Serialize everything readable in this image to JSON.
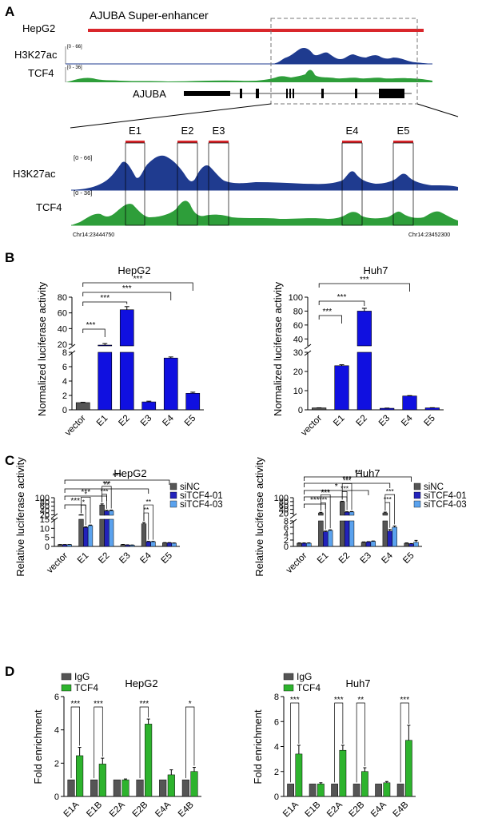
{
  "panel_a": {
    "letter": "A",
    "cell_line": "HepG2",
    "super_enhancer_label": "AJUBA Super-enhancer",
    "track1_label": "H3K27ac",
    "track1_range": "[0 - 66]",
    "track2_label": "TCF4",
    "track2_range": "[0 - 36]",
    "gene_label": "AJUBA",
    "zoom_track1_label": "H3K27ac",
    "zoom_track1_range": "[0 - 66]",
    "zoom_track2_label": "TCF4",
    "zoom_track2_range": "[0 - 36]",
    "coord_left": "Chr14:23444750",
    "coord_right": "Chr14:23452300",
    "enhancers": [
      "E1",
      "E2",
      "E3",
      "E4",
      "E5"
    ],
    "colors": {
      "h3k27ac": "#1f3b8f",
      "tcf4": "#2e9e3a",
      "super_enhancer": "#d9262b"
    }
  },
  "chart_data": [
    {
      "id": "B-HepG2",
      "type": "bar",
      "panel": "B",
      "title": "HepG2",
      "ylabel": "Normalized luciferase activity",
      "categories": [
        "vector",
        "E1",
        "E2",
        "E3",
        "E4",
        "E5"
      ],
      "values": [
        1.0,
        19,
        64,
        1.1,
        7.2,
        2.3
      ],
      "errors": [
        0.05,
        2,
        4,
        0.1,
        0.15,
        0.15
      ],
      "axis_break": {
        "lower": [
          0,
          8
        ],
        "upper": [
          18,
          80
        ]
      },
      "lower_ticks": [
        "0",
        "2",
        "4",
        "6",
        "8"
      ],
      "upper_ticks": [
        "20",
        "40",
        "60",
        "80"
      ],
      "significance": [
        {
          "to": "E1",
          "label": "***"
        },
        {
          "to": "E2",
          "label": "***"
        },
        {
          "to": "E4",
          "label": "***"
        },
        {
          "to": "E5",
          "label": "***"
        }
      ]
    },
    {
      "id": "B-Huh7",
      "type": "bar",
      "panel": "B",
      "title": "Huh7",
      "ylabel": "Normalized luciferase activity",
      "categories": [
        "vector",
        "E1",
        "E2",
        "E3",
        "E4",
        "E5"
      ],
      "values": [
        1.0,
        23,
        80,
        0.8,
        7.2,
        1.0
      ],
      "errors": [
        0.05,
        0.5,
        4,
        0.1,
        0.2,
        0.1
      ],
      "axis_break": {
        "lower": [
          0,
          30
        ],
        "upper": [
          30,
          100
        ]
      },
      "lower_ticks": [
        "0",
        "10",
        "20",
        "30"
      ],
      "upper_ticks": [
        "40",
        "60",
        "80",
        "100"
      ],
      "significance": [
        {
          "to": "E1",
          "label": "***"
        },
        {
          "to": "E2",
          "label": "***"
        },
        {
          "to": "E4",
          "label": "***"
        }
      ]
    },
    {
      "id": "C-HepG2",
      "type": "bar",
      "panel": "C",
      "title": "HepG2",
      "ylabel": "Relative luciferase activity",
      "categories": [
        "vector",
        "E1",
        "E2",
        "E3",
        "E4",
        "E5"
      ],
      "series": [
        {
          "name": "siNC",
          "values": [
            1.0,
            20,
            66,
            1.0,
            12.5,
            2.0
          ],
          "errors": [
            0.05,
            0.5,
            5,
            0.1,
            0.7,
            0.1
          ]
        },
        {
          "name": "siTCF4-01",
          "values": [
            1.0,
            10.5,
            38,
            0.8,
            2.6,
            2.0
          ],
          "errors": [
            0.05,
            0.3,
            3,
            0.1,
            0.2,
            0.1
          ]
        },
        {
          "name": "siTCF4-03",
          "values": [
            1.0,
            11.5,
            39,
            0.7,
            2.6,
            1.8
          ],
          "errors": [
            0.05,
            0.3,
            3,
            0.1,
            0.2,
            0.1
          ]
        }
      ],
      "axis_break": {
        "lower": [
          0,
          15
        ],
        "upper": [
          18,
          100
        ]
      },
      "lower_ticks": [
        "0",
        "5",
        "10",
        "15"
      ],
      "upper_ticks": [
        "20",
        "40",
        "60",
        "80",
        "100"
      ],
      "bracket_labels": [
        "***",
        "**",
        "***",
        "***"
      ],
      "inner_labels": {
        "E1": [
          "*",
          "*"
        ],
        "E2": [
          "***",
          "***"
        ],
        "E4": [
          "**",
          "**"
        ]
      }
    },
    {
      "id": "C-Huh7",
      "type": "bar",
      "panel": "C",
      "title": "Huh7",
      "ylabel": "Relative luciferase activity",
      "categories": [
        "vector",
        "E1",
        "E2",
        "E3",
        "E4",
        "E5"
      ],
      "series": [
        {
          "name": "siNC",
          "values": [
            1.0,
            22,
            80,
            1.3,
            22,
            1.0
          ],
          "errors": [
            0.1,
            3,
            2,
            0.1,
            4,
            0.1
          ]
        },
        {
          "name": "siTCF4-01",
          "values": [
            1.0,
            4.6,
            26,
            1.4,
            4.8,
            0.8
          ],
          "errors": [
            0.1,
            0.2,
            2,
            0.1,
            0.5,
            0.1
          ]
        },
        {
          "name": "siTCF4-03",
          "values": [
            1.0,
            5.0,
            27,
            1.6,
            6.0,
            1.3
          ],
          "errors": [
            0.1,
            0.2,
            2,
            0.1,
            0.4,
            0.6
          ]
        }
      ],
      "axis_break": {
        "lower": [
          0,
          8
        ],
        "upper": [
          10,
          100
        ]
      },
      "lower_ticks": [
        "0",
        "2",
        "4",
        "6",
        "8"
      ],
      "upper_ticks": [
        "20",
        "40",
        "60",
        "80",
        "100"
      ],
      "bracket_labels": [
        "**",
        "***",
        "*",
        "***",
        "***"
      ],
      "inner_labels": {
        "E1": [
          "***",
          "***"
        ],
        "E2": [
          "***",
          "***"
        ],
        "E4": [
          "***",
          "***"
        ]
      }
    },
    {
      "id": "D-HepG2",
      "type": "bar",
      "panel": "D",
      "title": "HepG2",
      "ylabel": "Fold enrichment",
      "ylim": [
        0,
        6
      ],
      "ticks": [
        "0",
        "2",
        "4",
        "6"
      ],
      "categories": [
        "E1A",
        "E1B",
        "E2A",
        "E2B",
        "E4A",
        "E4B"
      ],
      "series": [
        {
          "name": "IgG",
          "values": [
            1,
            1,
            1,
            1,
            1,
            1
          ],
          "errors": [
            0,
            0,
            0,
            0,
            0,
            0
          ]
        },
        {
          "name": "TCF4",
          "values": [
            2.45,
            1.95,
            1.0,
            4.35,
            1.3,
            1.5
          ],
          "errors": [
            0.5,
            0.35,
            0.05,
            0.3,
            0.3,
            0.25
          ]
        }
      ],
      "significance": [
        "***",
        "***",
        "",
        "***",
        "",
        "*"
      ]
    },
    {
      "id": "D-Huh7",
      "type": "bar",
      "panel": "D",
      "title": "Huh7",
      "ylabel": "Fold enrichment",
      "ylim": [
        0,
        8
      ],
      "ticks": [
        "0",
        "2",
        "4",
        "6",
        "8"
      ],
      "categories": [
        "E1A",
        "E1B",
        "E2A",
        "E2B",
        "E4A",
        "E4B"
      ],
      "series": [
        {
          "name": "IgG",
          "values": [
            1,
            1,
            1,
            1,
            1,
            1
          ],
          "errors": [
            0,
            0,
            0,
            0,
            0,
            0
          ]
        },
        {
          "name": "TCF4",
          "values": [
            3.4,
            1.0,
            3.7,
            2.0,
            1.1,
            4.5
          ],
          "errors": [
            0.7,
            0.1,
            0.4,
            0.3,
            0.1,
            1.2
          ]
        }
      ],
      "significance": [
        "***",
        "",
        "***",
        "**",
        "",
        "***"
      ]
    }
  ],
  "panel_letters": {
    "b": "B",
    "c": "C",
    "d": "D"
  },
  "colors": {
    "gray": "#555555",
    "blue": "#1010e0",
    "lightblue": "#5aa2ee",
    "dark_blue": "#2222bb",
    "green": "#2db32d",
    "frame": "#000000"
  }
}
